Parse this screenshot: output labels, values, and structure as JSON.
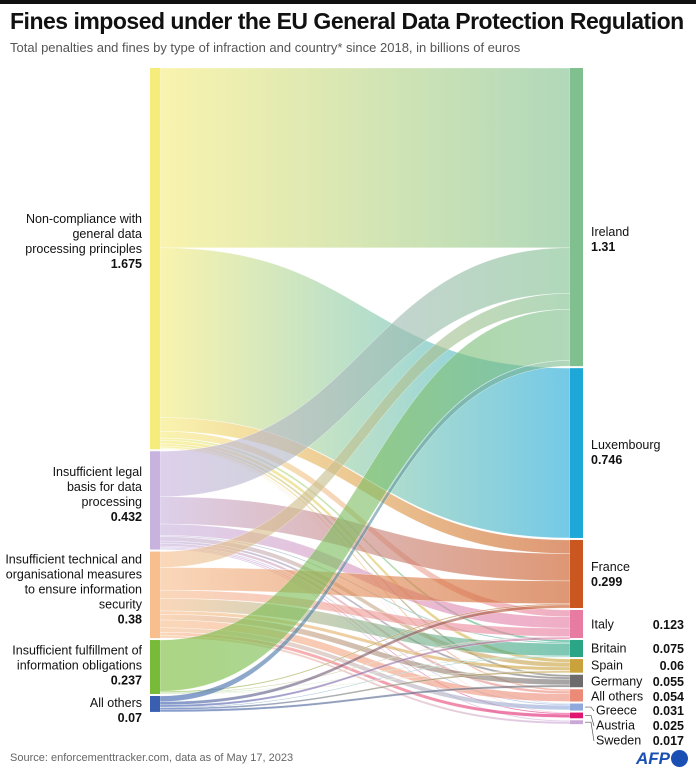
{
  "title": "Fines imposed under the EU General Data Protection Regulation",
  "subtitle": "Total penalties and fines by type of infraction and country* since 2018, in billions of euros",
  "source": "Source:  enforcementtracker.com, data as of May 17, 2023",
  "logo": "AFP",
  "chart_data": {
    "type": "sankey",
    "units": "billions of euros",
    "sources": [
      {
        "name": "Non-compliance with general data processing principles",
        "value": "1.675",
        "color": "#f6ec7c"
      },
      {
        "name": "Insufficient legal basis for data processing",
        "value": "0.432",
        "color": "#c8b3de"
      },
      {
        "name": "Insufficient technical and organisational measures to ensure information security",
        "value": "0.38",
        "color": "#f8be8e"
      },
      {
        "name": "Insufficient fulfillment of information obligations",
        "value": "0.237",
        "color": "#78bb38"
      },
      {
        "name": "All others",
        "value": "0.07",
        "color": "#3a5fb0"
      }
    ],
    "targets": [
      {
        "name": "Ireland",
        "value": "1.31",
        "color": "#80c08f"
      },
      {
        "name": "Luxembourg",
        "value": "0.746",
        "color": "#1ea8d8"
      },
      {
        "name": "France",
        "value": "0.299",
        "color": "#c9571f"
      },
      {
        "name": "Italy",
        "value": "0.123",
        "color": "#e77ba1"
      },
      {
        "name": "Britain",
        "value": "0.075",
        "color": "#2aa686"
      },
      {
        "name": "Spain",
        "value": "0.06",
        "color": "#c9a23c"
      },
      {
        "name": "Germany",
        "value": "0.055",
        "color": "#6d6b6b"
      },
      {
        "name": "All others",
        "value": "0.054",
        "color": "#ec8a78"
      },
      {
        "name": "Greece",
        "value": "0.031",
        "color": "#8fa9dd"
      },
      {
        "name": "Austria",
        "value": "0.025",
        "color": "#e0156f"
      },
      {
        "name": "Sweden",
        "value": "0.017",
        "color": "#c9a7d7"
      }
    ],
    "flows_estimated": [
      [
        0.79,
        0.746,
        0.06,
        0.03,
        0.01,
        0.015,
        0.01,
        0.008,
        0.003,
        0.002,
        0.001
      ],
      [
        0.2,
        0,
        0.12,
        0.05,
        0.005,
        0.02,
        0.01,
        0.012,
        0.005,
        0.005,
        0.005
      ],
      [
        0.07,
        0,
        0.1,
        0.036,
        0.055,
        0.015,
        0.025,
        0.034,
        0.02,
        0.015,
        0.01
      ],
      [
        0.225,
        0,
        0.005,
        0.003,
        0.002,
        0.002,
        0,
        0,
        0,
        0,
        0
      ],
      [
        0.025,
        0,
        0.014,
        0.01,
        0.003,
        0.008,
        0.01,
        0,
        0,
        0,
        0
      ]
    ]
  }
}
